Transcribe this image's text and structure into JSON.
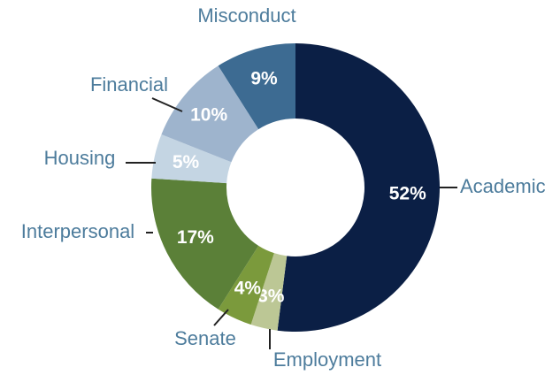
{
  "chart_data": {
    "type": "donut",
    "categories": [
      "Academic",
      "Employment",
      "Senate",
      "Interpersonal",
      "Housing",
      "Financial",
      "Misconduct"
    ],
    "values": [
      52,
      3,
      4,
      17,
      5,
      10,
      9
    ],
    "value_labels": [
      "52%",
      "3%",
      "4%",
      "17%",
      "5%",
      "10%",
      "9%"
    ],
    "colors": [
      "#0b1f45",
      "#bcc795",
      "#7b9a3c",
      "#5b8038",
      "#c4d5e3",
      "#9eb4cd",
      "#3d6b92"
    ]
  }
}
